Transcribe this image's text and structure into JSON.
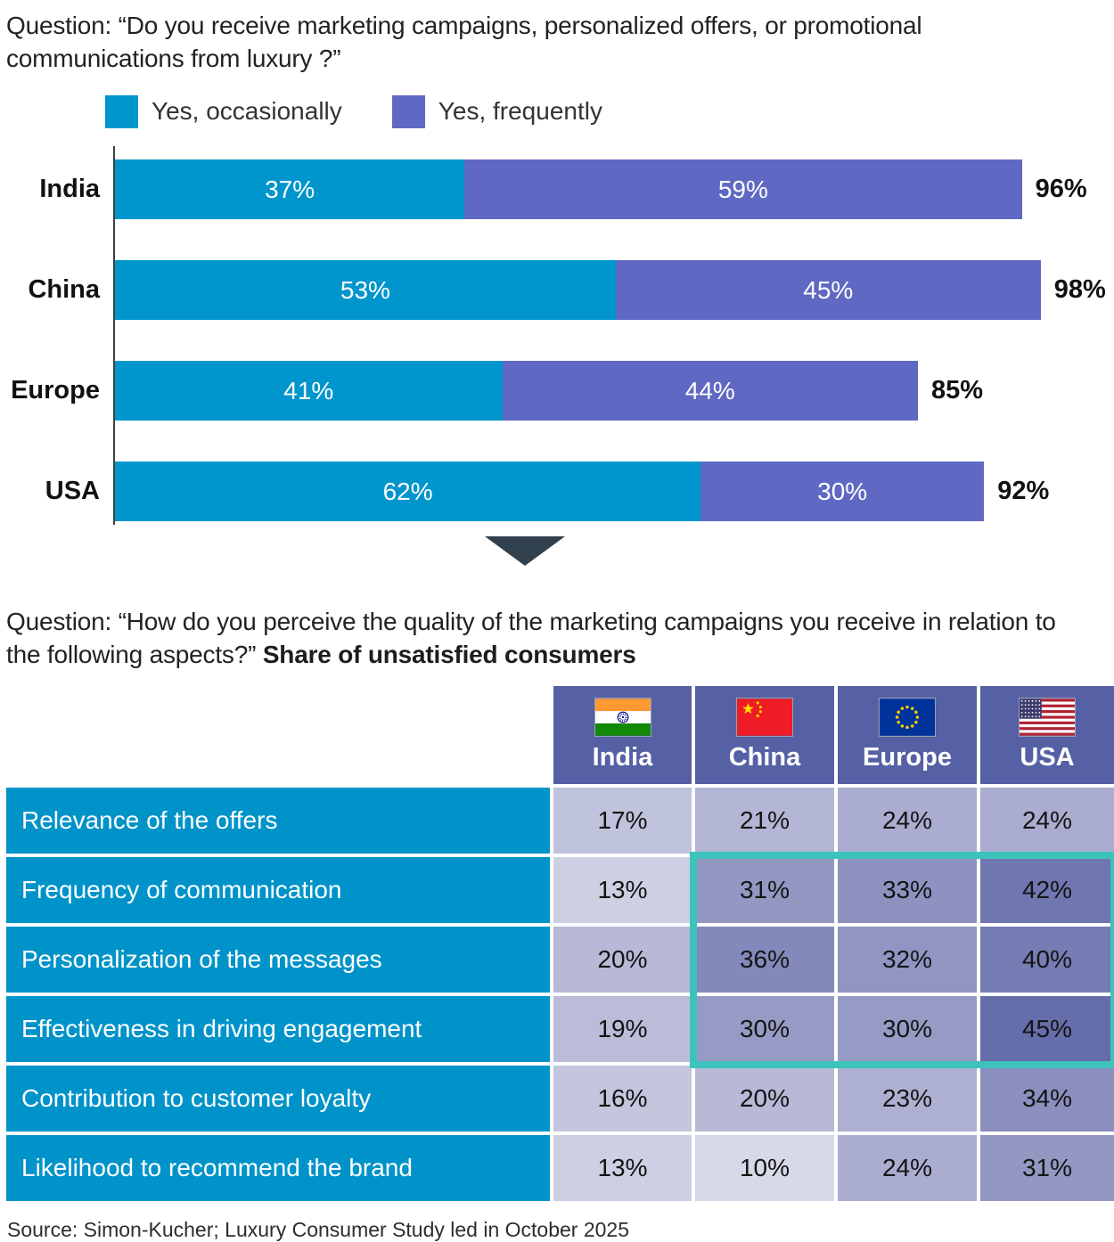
{
  "question1": "Question: “Do you receive marketing campaigns, personalized offers, or promotional communications from luxury ?”",
  "question2": {
    "prefix": "Question: “How do you perceive the quality of the marketing campaigns you receive in relation to the following aspects?” ",
    "bold": "Share of unsatisfied consumers"
  },
  "source": "Source: Simon-Kucher; Luxury Consumer Study led in October 2025",
  "colors": {
    "occasionally": "#0095CC",
    "frequently": "#5F69C3",
    "table_header_bg": "#5560A5",
    "row_label_bg": "#0093C9",
    "highlight_border": "#3EC3BC",
    "arrow": "#31404D",
    "axis": "#404040"
  },
  "chart_data": [
    {
      "type": "bar",
      "orientation": "horizontal",
      "stacked": true,
      "title": "Do you receive marketing campaigns, personalized offers, or promotional communications from luxury ?",
      "categories": [
        "India",
        "China",
        "Europe",
        "USA"
      ],
      "series": [
        {
          "name": "Yes, occasionally",
          "color": "#0095CC",
          "values": [
            37,
            53,
            41,
            62
          ]
        },
        {
          "name": "Yes, frequently",
          "color": "#5F69C3",
          "values": [
            59,
            45,
            44,
            30
          ]
        }
      ],
      "totals": [
        96,
        98,
        85,
        92
      ],
      "xlim": [
        0,
        100
      ],
      "value_suffix": "%",
      "legend_position": "top",
      "grid": false
    },
    {
      "type": "heatmap",
      "title": "How do you perceive the quality of the marketing campaigns you receive in relation to the following aspects? Share of unsatisfied consumers",
      "columns": [
        "India",
        "China",
        "Europe",
        "USA"
      ],
      "rows": [
        "Relevance of the offers",
        "Frequency of communication",
        "Personalization of the messages",
        "Effectiveness in driving engagement",
        "Contribution to customer loyalty",
        "Likelihood to recommend the brand"
      ],
      "values": [
        [
          17,
          21,
          24,
          24
        ],
        [
          13,
          31,
          33,
          42
        ],
        [
          20,
          36,
          32,
          40
        ],
        [
          19,
          30,
          30,
          45
        ],
        [
          16,
          20,
          23,
          34
        ],
        [
          13,
          10,
          24,
          31
        ]
      ],
      "value_suffix": "%",
      "color_scale": {
        "min_value": 10,
        "max_value": 45,
        "min_color": "#D7D8E8",
        "max_color": "#666DAB"
      },
      "highlight_box": {
        "columns": [
          "China",
          "Europe",
          "USA"
        ],
        "rows": [
          "Frequency of communication",
          "Personalization of the messages",
          "Effectiveness in driving engagement"
        ],
        "border_color": "#3EC3BC"
      }
    }
  ]
}
